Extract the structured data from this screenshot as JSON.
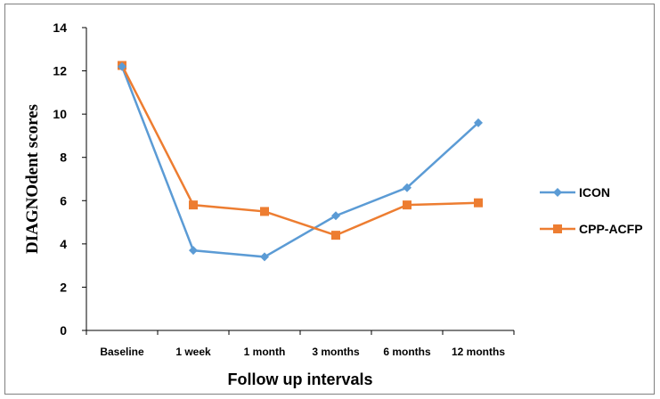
{
  "chart_data": {
    "type": "line",
    "categories": [
      "Baseline",
      "1 week",
      "1 month",
      "3 months",
      "6 months",
      "12 months"
    ],
    "series": [
      {
        "name": "ICON",
        "values": [
          12.2,
          3.7,
          3.4,
          5.3,
          6.6,
          9.6
        ],
        "color": "#5b9bd5",
        "marker": "diamond"
      },
      {
        "name": "CPP-ACFP",
        "values": [
          12.25,
          5.8,
          5.5,
          4.4,
          5.8,
          5.9
        ],
        "color": "#ed7d31",
        "marker": "square"
      }
    ],
    "xlabel": "Follow up intervals",
    "ylabel": "DIAGNOdent scores",
    "ylim": [
      0,
      14
    ],
    "yticks": [
      "0",
      "2",
      "4",
      "6",
      "8",
      "10",
      "12",
      "14"
    ],
    "grid": false,
    "legend_position": "right"
  }
}
